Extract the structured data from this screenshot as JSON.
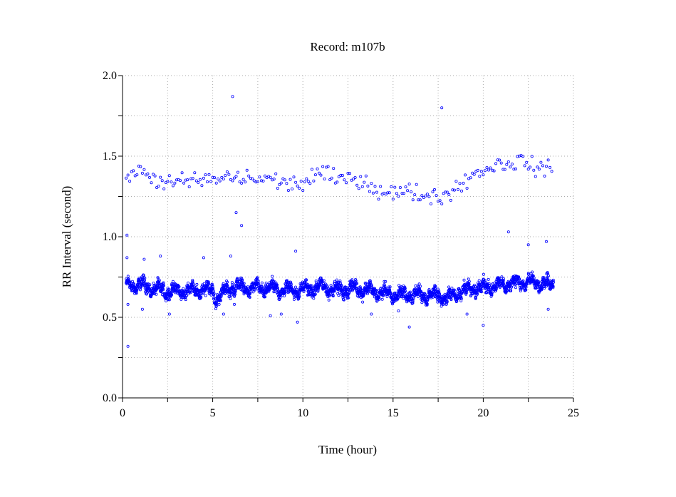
{
  "chart_data": {
    "type": "scatter",
    "title": "Record:  m107b",
    "xlabel": "Time (hour)",
    "ylabel": "RR Interval (second)",
    "xlim": [
      0,
      25
    ],
    "ylim": [
      0,
      2.0
    ],
    "x_ticks": [
      "0",
      "5",
      "10",
      "15",
      "20",
      "25"
    ],
    "y_ticks": [
      "0.0",
      "0.5",
      "1.0",
      "1.5",
      "2.0"
    ],
    "grid": true,
    "marker_color": "#0000ff",
    "main_band": {
      "hours": [
        0.2,
        1,
        2,
        3,
        4,
        5,
        5.2,
        6,
        7,
        8,
        9,
        10,
        11,
        12,
        13,
        14,
        15,
        16,
        17,
        18,
        19,
        20,
        21,
        22,
        23,
        23.9
      ],
      "center": [
        0.7,
        0.7,
        0.67,
        0.66,
        0.67,
        0.67,
        0.61,
        0.69,
        0.68,
        0.68,
        0.67,
        0.67,
        0.69,
        0.67,
        0.68,
        0.66,
        0.64,
        0.64,
        0.64,
        0.62,
        0.67,
        0.69,
        0.7,
        0.72,
        0.71,
        0.7
      ],
      "spread": 0.05
    },
    "upper_cluster": {
      "hours": [
        0.2,
        1,
        2,
        3,
        4,
        5,
        6,
        7,
        8,
        9,
        10,
        11,
        12,
        13,
        14,
        15,
        16,
        17,
        18,
        19,
        20,
        21,
        22,
        23,
        23.9
      ],
      "center": [
        1.4,
        1.4,
        1.35,
        1.33,
        1.35,
        1.35,
        1.37,
        1.36,
        1.36,
        1.33,
        1.33,
        1.4,
        1.35,
        1.37,
        1.3,
        1.27,
        1.28,
        1.25,
        1.26,
        1.35,
        1.42,
        1.45,
        1.47,
        1.43,
        1.4
      ],
      "spread": 0.05
    },
    "outliers": [
      [
        6.1,
        1.87
      ],
      [
        17.7,
        1.8
      ],
      [
        0.3,
        0.32
      ],
      [
        0.25,
        1.01
      ],
      [
        6.3,
        1.15
      ],
      [
        6.6,
        1.07
      ],
      [
        9.7,
        0.47
      ],
      [
        15.9,
        0.44
      ],
      [
        20.0,
        0.45
      ],
      [
        21.4,
        1.03
      ],
      [
        23.5,
        0.97
      ],
      [
        9.6,
        0.91
      ],
      [
        0.25,
        0.87
      ],
      [
        1.2,
        0.86
      ],
      [
        2.1,
        0.88
      ],
      [
        4.5,
        0.87
      ],
      [
        6.0,
        0.88
      ],
      [
        0.3,
        0.58
      ],
      [
        1.1,
        0.55
      ],
      [
        2.6,
        0.52
      ],
      [
        5.6,
        0.52
      ],
      [
        6.2,
        0.58
      ],
      [
        8.2,
        0.51
      ],
      [
        8.8,
        0.52
      ],
      [
        13.8,
        0.52
      ],
      [
        15.3,
        0.54
      ],
      [
        19.1,
        0.52
      ],
      [
        23.6,
        0.55
      ],
      [
        22.5,
        0.95
      ]
    ]
  }
}
